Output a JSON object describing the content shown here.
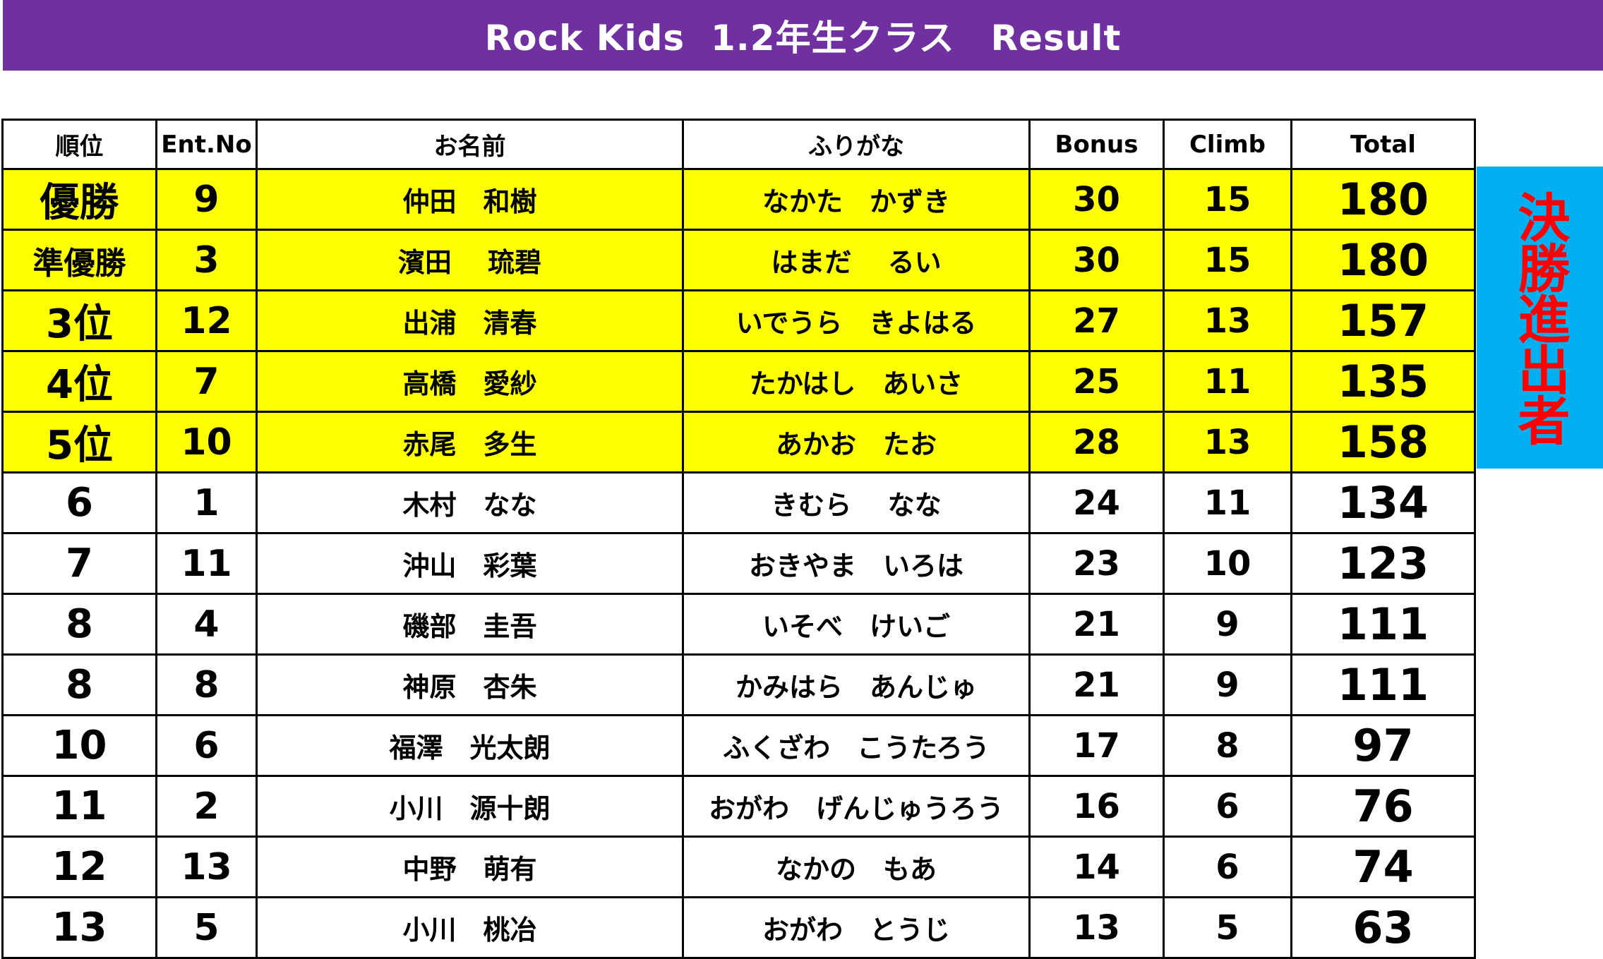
{
  "title": "Rock Kids  1.2年生クラス　Result",
  "side_label": "決勝進出者",
  "colors": {
    "banner": "#7030a0",
    "finalist_row": "#ffff00",
    "side_label_bg": "#00b0f0",
    "side_label_text": "#ff0000",
    "cutline": "#ff0000"
  },
  "table": {
    "headers": {
      "rank": "順位",
      "ent_no": "Ent.No",
      "name": "お名前",
      "furigana": "ふりがな",
      "bonus": "Bonus",
      "climb": "Climb",
      "total": "Total"
    },
    "rows": [
      {
        "rank": "優勝",
        "ent_no": "9",
        "name": "仲田　和樹",
        "furigana": "なかた　かずき",
        "bonus": "30",
        "climb": "15",
        "total": "180"
      },
      {
        "rank": "準優勝",
        "ent_no": "3",
        "name": "濱田　 琉碧",
        "furigana": "はまだ　 るい",
        "bonus": "30",
        "climb": "15",
        "total": "180"
      },
      {
        "rank": "3位",
        "ent_no": "12",
        "name": "出浦　清春",
        "furigana": "いでうら　きよはる",
        "bonus": "27",
        "climb": "13",
        "total": "157"
      },
      {
        "rank": "4位",
        "ent_no": "7",
        "name": "高橋　愛紗",
        "furigana": "たかはし　あいさ",
        "bonus": "25",
        "climb": "11",
        "total": "135"
      },
      {
        "rank": "5位",
        "ent_no": "10",
        "name": "赤尾　多生",
        "furigana": "あかお　たお",
        "bonus": "28",
        "climb": "13",
        "total": "158"
      },
      {
        "rank": "6",
        "ent_no": "1",
        "name": "木村　なな",
        "furigana": "きむら　 なな",
        "bonus": "24",
        "climb": "11",
        "total": "134"
      },
      {
        "rank": "7",
        "ent_no": "11",
        "name": "沖山　彩葉",
        "furigana": "おきやま　いろは",
        "bonus": "23",
        "climb": "10",
        "total": "123"
      },
      {
        "rank": "8",
        "ent_no": "4",
        "name": "磯部　圭吾",
        "furigana": "いそべ　けいご",
        "bonus": "21",
        "climb": "9",
        "total": "111"
      },
      {
        "rank": "8",
        "ent_no": "8",
        "name": "神原　杏朱",
        "furigana": "かみはら　あんじゅ",
        "bonus": "21",
        "climb": "9",
        "total": "111"
      },
      {
        "rank": "10",
        "ent_no": "6",
        "name": "福澤　光太朗",
        "furigana": "ふくざわ　こうたろう",
        "bonus": "17",
        "climb": "8",
        "total": "97"
      },
      {
        "rank": "11",
        "ent_no": "2",
        "name": "小川　源十朗",
        "furigana": "おがわ　げんじゅうろう",
        "bonus": "16",
        "climb": "6",
        "total": "76"
      },
      {
        "rank": "12",
        "ent_no": "13",
        "name": "中野　萌有",
        "furigana": "なかの　もあ",
        "bonus": "14",
        "climb": "6",
        "total": "74"
      },
      {
        "rank": "13",
        "ent_no": "5",
        "name": "小川　桃冶",
        "furigana": "おがわ　とうじ",
        "bonus": "13",
        "climb": "5",
        "total": "63"
      }
    ]
  }
}
